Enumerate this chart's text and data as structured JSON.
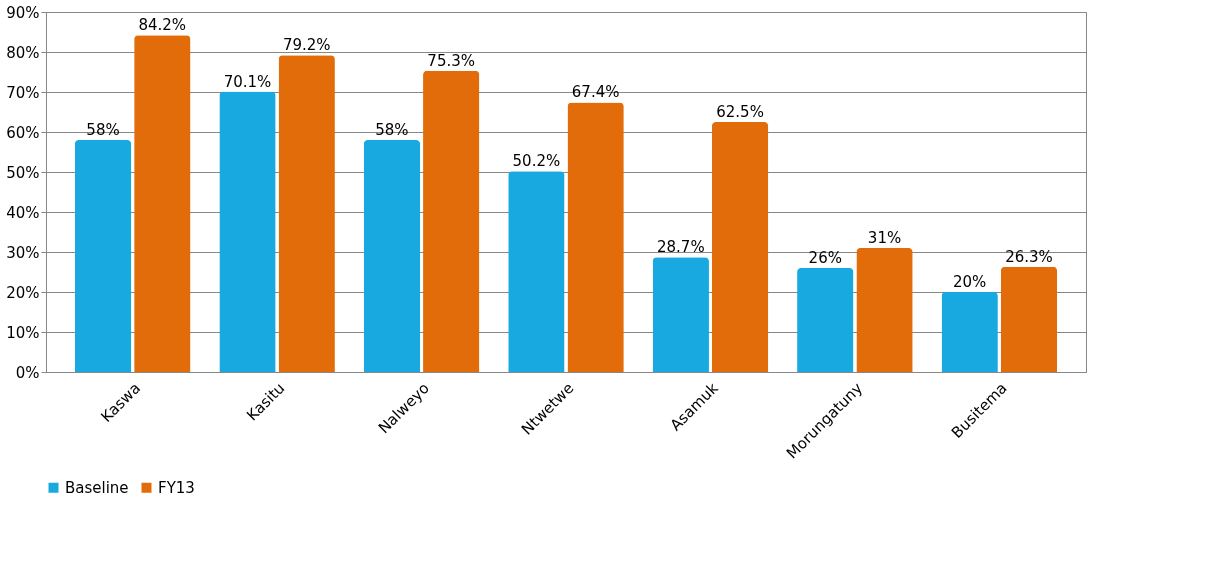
{
  "chart_data": {
    "type": "bar",
    "categories": [
      "Kaswa",
      "Kasitu",
      "Nalweyo",
      "Ntwetwe",
      "Asamuk",
      "Morungatuny",
      "Busitema"
    ],
    "series": [
      {
        "name": "Baseline",
        "color": "#17a9e0",
        "values": [
          58,
          70.1,
          58,
          50.2,
          28.7,
          26,
          20
        ],
        "value_labels": [
          "58%",
          "70.1%",
          "58%",
          "50.2%",
          "28.7%",
          "26%",
          "20%"
        ]
      },
      {
        "name": "FY13",
        "color": "#e36c0a",
        "values": [
          84.2,
          79.2,
          75.3,
          67.4,
          62.5,
          31,
          26.3
        ],
        "value_labels": [
          "84.2%",
          "79.2%",
          "75.3%",
          "67.4%",
          "62.5%",
          "31%",
          "26.3%"
        ]
      }
    ],
    "ylim": [
      0,
      90
    ],
    "yticks": [
      {
        "value": 0,
        "label": "0%"
      },
      {
        "value": 10,
        "label": "10%"
      },
      {
        "value": 20,
        "label": "20%"
      },
      {
        "value": 30,
        "label": "30%"
      },
      {
        "value": 40,
        "label": "40%"
      },
      {
        "value": 50,
        "label": "50%"
      },
      {
        "value": 60,
        "label": "60%"
      },
      {
        "value": 70,
        "label": "70%"
      },
      {
        "value": 80,
        "label": "80%"
      },
      {
        "value": 90,
        "label": "90%"
      }
    ],
    "grid": "y",
    "legend": "bottom"
  }
}
